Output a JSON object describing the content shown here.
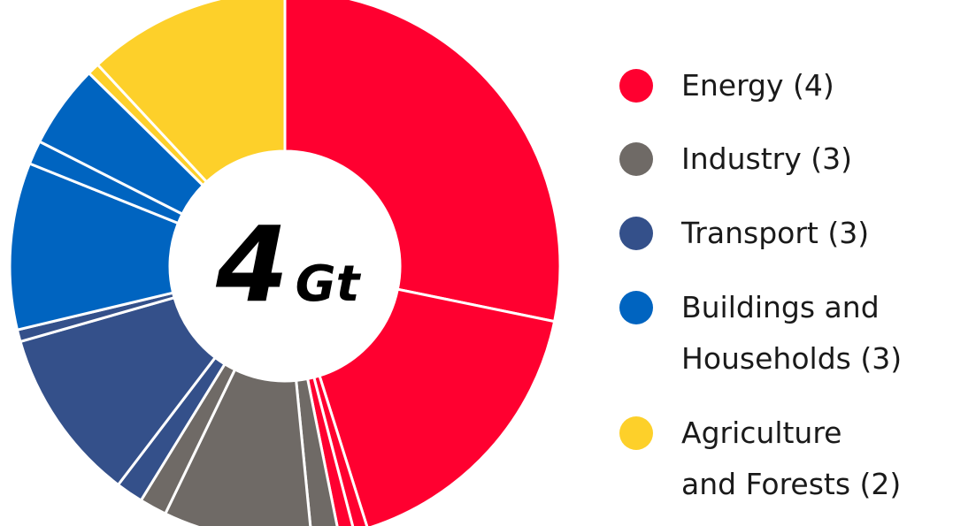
{
  "chart_data": {
    "type": "donut",
    "center_value": "4",
    "center_unit": "Gt",
    "series": [
      {
        "name": "Energy (4)",
        "color": "#ff0030",
        "values": [
          28.2,
          16.9,
          0.8,
          0.9
        ]
      },
      {
        "name": "Industry (3)",
        "color": "#6f6a66",
        "values": [
          1.6,
          8.7,
          1.6
        ]
      },
      {
        "name": "Transport (3)",
        "color": "#34508a",
        "values": [
          1.6,
          10.2,
          0.7
        ]
      },
      {
        "name": "Buildings and\nHouseholds (3)",
        "color": "#0064c0",
        "values": [
          9.8,
          1.4,
          4.9
        ]
      },
      {
        "name": "Agriculture\nand Forests (2)",
        "color": "#fdd02a",
        "values": [
          0.7,
          11.9
        ]
      }
    ]
  }
}
